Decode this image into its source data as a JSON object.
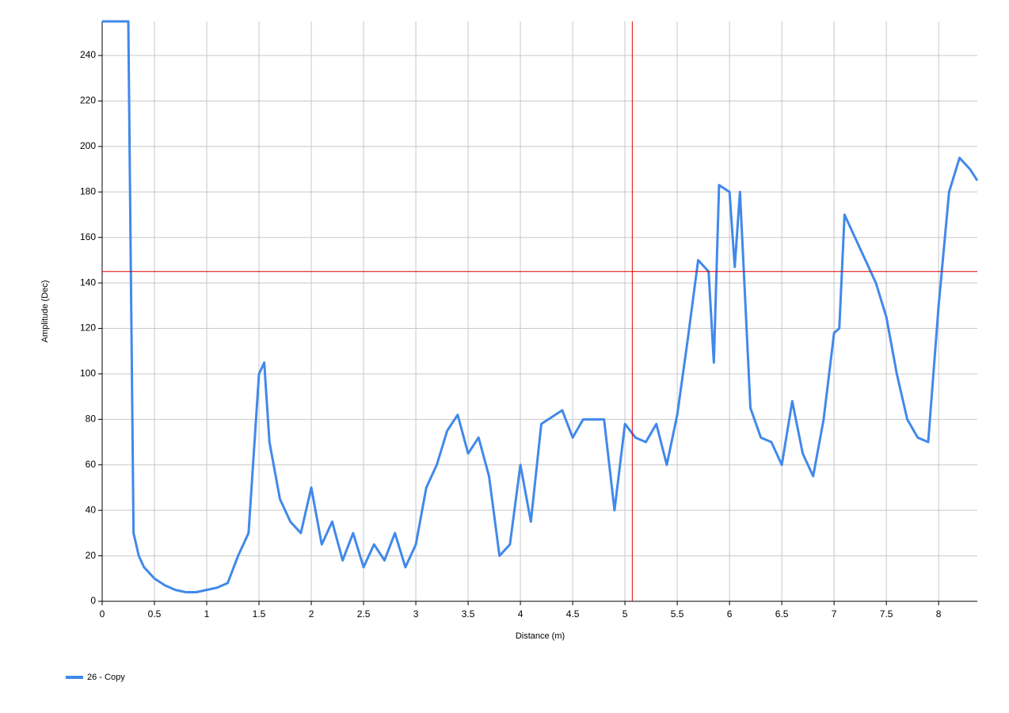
{
  "chart_data": {
    "type": "line",
    "xlabel": "Distance (m)",
    "ylabel": "Amplitude (Dec)",
    "xlim": [
      0,
      8.37
    ],
    "ylim": [
      0,
      255
    ],
    "xticks": [
      0,
      0.5,
      1,
      1.5,
      2,
      2.5,
      3,
      3.5,
      4,
      4.5,
      5,
      5.5,
      6,
      6.5,
      7,
      7.5,
      8
    ],
    "yticks": [
      0,
      20,
      40,
      60,
      80,
      100,
      120,
      140,
      160,
      180,
      200,
      220,
      240
    ],
    "grid": true,
    "cursor": {
      "x": 5.07,
      "y": 145,
      "color": "#e00000"
    },
    "legend": "bottom-left",
    "series": [
      {
        "name": "26 - Copy",
        "color": "#4189ea",
        "x": [
          0,
          0.1,
          0.2,
          0.25,
          0.3,
          0.35,
          0.4,
          0.5,
          0.6,
          0.7,
          0.8,
          0.9,
          1.0,
          1.1,
          1.2,
          1.3,
          1.4,
          1.5,
          1.55,
          1.6,
          1.7,
          1.8,
          1.9,
          2.0,
          2.1,
          2.2,
          2.3,
          2.4,
          2.5,
          2.6,
          2.7,
          2.8,
          2.9,
          3.0,
          3.1,
          3.2,
          3.3,
          3.4,
          3.5,
          3.6,
          3.7,
          3.8,
          3.9,
          4.0,
          4.1,
          4.2,
          4.4,
          4.5,
          4.6,
          4.8,
          4.9,
          5.0,
          5.1,
          5.2,
          5.3,
          5.4,
          5.5,
          5.6,
          5.7,
          5.8,
          5.85,
          5.9,
          6.0,
          6.05,
          6.1,
          6.2,
          6.3,
          6.4,
          6.5,
          6.6,
          6.7,
          6.8,
          6.9,
          7.0,
          7.05,
          7.1,
          7.2,
          7.3,
          7.4,
          7.5,
          7.6,
          7.7,
          7.8,
          7.9,
          8.0,
          8.1,
          8.2,
          8.3,
          8.37
        ],
        "values": [
          255,
          255,
          255,
          255,
          30,
          20,
          15,
          10,
          7,
          5,
          4,
          4,
          5,
          6,
          8,
          20,
          30,
          100,
          105,
          70,
          45,
          35,
          30,
          50,
          25,
          35,
          18,
          30,
          15,
          25,
          18,
          30,
          15,
          25,
          50,
          60,
          75,
          82,
          65,
          72,
          55,
          20,
          25,
          60,
          35,
          78,
          84,
          72,
          80,
          80,
          40,
          78,
          72,
          70,
          78,
          60,
          82,
          115,
          150,
          145,
          105,
          183,
          180,
          147,
          180,
          85,
          72,
          70,
          60,
          88,
          65,
          55,
          80,
          118,
          120,
          170,
          160,
          150,
          140,
          125,
          100,
          80,
          72,
          70,
          130,
          180,
          195,
          190,
          185
        ]
      }
    ]
  }
}
